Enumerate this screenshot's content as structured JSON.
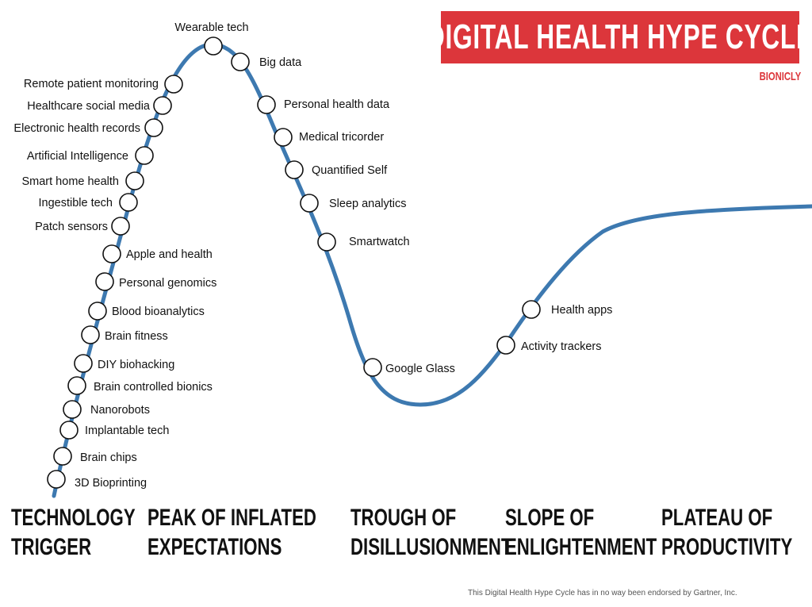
{
  "title": "DIGITAL HEALTH HYPE CYCLE",
  "brand": "BIONICLY",
  "colors": {
    "curve": "#3d79b0",
    "title_bg": "#dc363b",
    "brand": "#dc363b"
  },
  "technologies": [
    "Wearable tech",
    "Big data",
    "Remote patient monitoring",
    "Healthcare social media",
    "Electronic health records",
    "Artificial Intelligence",
    "Smart home health",
    "Ingestible tech",
    "Patch sensors",
    "Apple and health",
    "Personal genomics",
    "Blood bioanalytics",
    "Brain fitness",
    "DIY biohacking",
    "Brain controlled bionics",
    "Nanorobots",
    "Implantable tech",
    "Brain chips",
    "3D Bioprinting",
    "Personal health data",
    "Medical tricorder",
    "Quantified Self",
    "Sleep analytics",
    "Smartwatch",
    "Google Glass",
    "Activity trackers",
    "Health apps"
  ],
  "phases": [
    {
      "line1": "TECHNOLOGY",
      "line2": "TRIGGER"
    },
    {
      "line1": "PEAK OF INFLATED",
      "line2": "EXPECTATIONS"
    },
    {
      "line1": "TROUGH OF",
      "line2": "DISILLUSIONMENT"
    },
    {
      "line1": "SLOPE OF",
      "line2": "ENLIGHTENMENT"
    },
    {
      "line1": "PLATEAU OF",
      "line2": "PRODUCTIVITY"
    }
  ],
  "footer": "This Digital Health Hype Cycle has in no way been endorsed by Gartner, Inc."
}
